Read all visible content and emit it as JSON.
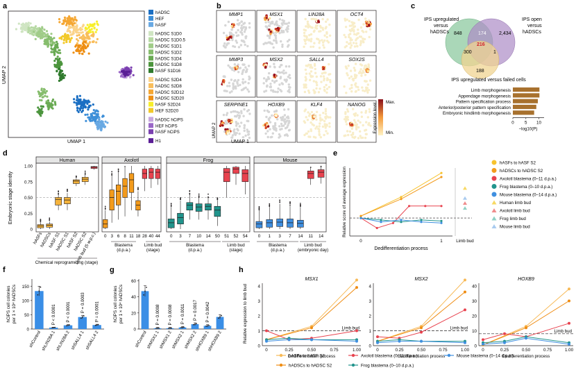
{
  "panel_letters": [
    "a",
    "b",
    "c",
    "d",
    "e",
    "f",
    "g",
    "h"
  ],
  "panel_a": {
    "xlabel": "UMAP 1",
    "ylabel": "UMAP 2",
    "legend": [
      {
        "label": "hADSC",
        "color": "#1b6fc3"
      },
      {
        "label": "HEF",
        "color": "#3d8fd8"
      },
      {
        "label": "hASF",
        "color": "#69a9e3"
      },
      {
        "label": "hADSC S1D0",
        "color": "#cfe5c2"
      },
      {
        "label": "hADSC S1D0.5",
        "color": "#b7d9a4"
      },
      {
        "label": "hADSC S1D1",
        "color": "#a0cc88"
      },
      {
        "label": "hADSC S1D2",
        "color": "#86bd6d"
      },
      {
        "label": "hADSC S1D4",
        "color": "#69aa53"
      },
      {
        "label": "hADSC S1D8",
        "color": "#4c953d"
      },
      {
        "label": "hASF S1D16",
        "color": "#2f7a2c"
      },
      {
        "label": "hADSC S2D4",
        "color": "#fbd38a"
      },
      {
        "label": "hADSC S2D8",
        "color": "#f9be5c"
      },
      {
        "label": "hADSC S2D12",
        "color": "#f5a733"
      },
      {
        "label": "hADSC S2D20",
        "color": "#ee8f14"
      },
      {
        "label": "hASF S2D24",
        "color": "#f7ef2a"
      },
      {
        "label": "HEF S2D20",
        "color": "#f2c928"
      },
      {
        "label": "hADSC hCiPS",
        "color": "#c7a7de"
      },
      {
        "label": "HEF hCiPS",
        "color": "#9a67c7"
      },
      {
        "label": "hASF hCiPS",
        "color": "#7a3fb0"
      },
      {
        "label": "H1",
        "color": "#5a1e95"
      }
    ]
  },
  "panel_b": {
    "genes": [
      "MMP1",
      "MSX1",
      "LIN28A",
      "OCT4",
      "MMP3",
      "MSX2",
      "SALL4",
      "SOX2S",
      "SERPINE1",
      "HOXB9",
      "KLF4",
      "NANOG"
    ],
    "xlabel": "UMAP 1",
    "ylabel": "UMAP 2",
    "colorbar_title": "Expression level",
    "colorbar_max": "Max.",
    "colorbar_min": "Min."
  },
  "panel_c": {
    "ylabel": "Embryonic stage identity",
    "yticks": [
      "0",
      "0.25",
      "0.50",
      "0.75",
      "1.00"
    ],
    "groups": [
      "Human",
      "Axolotl",
      "Frog",
      "Mouse"
    ],
    "human_ticks": [
      "hASFs",
      "hADSCs",
      "hASF S1",
      "hADSC S1",
      "hASF S2",
      "hADSC S2",
      "Limb bud (5 w.p.c.)"
    ],
    "human_caption": "Chemical reprogramming (stage)",
    "axolotl_ticks": [
      "0",
      "3",
      "6",
      "8",
      "11",
      "18",
      "28",
      "40",
      "44"
    ],
    "axolotl_caption_blastema": "Blastema (d.p.a.)",
    "axolotl_caption_limbbud": "Limb bud (stage)",
    "frog_ticks": [
      "0",
      "3",
      "7",
      "10",
      "14",
      "50",
      "51",
      "52",
      "54"
    ],
    "frog_caption_blastema": "Blastema (d.p.a.)",
    "frog_caption_limbbud": "Limb bud (stage)",
    "mouse_ticks": [
      "0",
      "1",
      "3",
      "7",
      "14",
      "11",
      "14"
    ],
    "mouse_caption_blastema": "Blastema (d.p.a.)",
    "mouse_caption_limbbud": "Limb bud (embryonic day)"
  },
  "panel_d": {
    "venn_labels": {
      "a": "IPS upregulated versus hADSCs",
      "b": "IPS open versus hADSCs",
      "c": "IPS upregulated versus failed cells"
    },
    "venn_counts": {
      "a_only": "848",
      "b_only": "2,434",
      "c_only": "188",
      "ab": "174",
      "ac": "300",
      "bc": "1",
      "abc": "216"
    },
    "go_terms": [
      {
        "term": "Limb morphogenesis",
        "value": 10.2
      },
      {
        "term": "Appendage morphogenesis",
        "value": 10.2
      },
      {
        "term": "Pattern specification process",
        "value": 9.6
      },
      {
        "term": "Anterior/posterior pattern specification",
        "value": 9.0
      },
      {
        "term": "Embryonic hindlimb morphogenesis",
        "value": 8.2
      }
    ],
    "xticks": [
      "0",
      "5",
      "10"
    ],
    "xlabel": "−log10(P)"
  },
  "panel_e": {
    "ylabel": "Relative score of average expression",
    "xlabel": "Dedifferentiation process",
    "xticks": [
      "0",
      "1"
    ],
    "limb_bud_label": "Limb bud",
    "legend": [
      {
        "label": "hASFs to hASF S2",
        "color": "#f7c32e",
        "shape": "circle"
      },
      {
        "label": "hADSCs to hADSC S2",
        "color": "#f39b1c",
        "shape": "circle"
      },
      {
        "label": "Axolotl blastema (0–11 d.p.a.)",
        "color": "#e8434f",
        "shape": "circle"
      },
      {
        "label": "Frog blastema (0–10 d.p.a.)",
        "color": "#21948c",
        "shape": "circle"
      },
      {
        "label": "Mouse blastema (0–14 d.p.a.)",
        "color": "#3f8fe0",
        "shape": "circle"
      },
      {
        "label": "Human limb bud",
        "color": "#f8d962",
        "shape": "triangle"
      },
      {
        "label": "Axolotl limb bud",
        "color": "#f08c8c",
        "shape": "triangle"
      },
      {
        "label": "Frog limb bud",
        "color": "#8fd0c4",
        "shape": "triangle"
      },
      {
        "label": "Mouse limb bud",
        "color": "#a9cbef",
        "shape": "triangle"
      }
    ]
  },
  "panel_f": {
    "ylabel": "hCiPS cell colonies per 1 × 10⁴ hADSCs",
    "yticks": [
      "0",
      "50",
      "100",
      "150"
    ],
    "ylim": [
      0,
      175
    ],
    "categories": [
      "shControl",
      "shLIN28A 1",
      "shLIN28A 2",
      "shSALL4 1",
      "shSALL4 2"
    ],
    "values": [
      133,
      5,
      13,
      42,
      14
    ],
    "pvalues": [
      "",
      "P < 0.0001",
      "P < 0.0001",
      "P = 0.0003",
      "P = 0.0001"
    ]
  },
  "panel_g": {
    "ylabel": "hCiPS cell colonies per 1 × 10⁴ hADSCs",
    "yticks": [
      "0",
      "20",
      "40",
      "60"
    ],
    "ylim": [
      0,
      62
    ],
    "categories": [
      "shControl",
      "shMSX1 1",
      "shMSX1 2",
      "shMSX2 1",
      "shMSX2 2",
      "shHOXB9 1",
      "shHOXB9 2"
    ],
    "values": [
      47,
      1,
      1,
      2,
      6,
      4,
      15
    ],
    "pvalues": [
      "",
      "P = 0.0008",
      "P = 0.0008",
      "P = 0.0011",
      "P = 0.0017",
      "P = 0.0042",
      ""
    ]
  },
  "panel_h": {
    "ylabel": "Relative expression to limb bud",
    "xlabel": "Dedifferentiation process",
    "xticks": [
      "0",
      "0.25",
      "0.50",
      "0.75",
      "1.00"
    ],
    "limb_bud_label": "Limb bud",
    "genes": [
      "MSX1",
      "MSX2",
      "HOXB9"
    ],
    "yticks": [
      [
        "0",
        "1",
        "2",
        "3",
        "4"
      ],
      [
        "0",
        "1",
        "2",
        "3",
        "4"
      ],
      [
        "0",
        "10",
        "20",
        "30",
        "40"
      ]
    ],
    "legend": [
      {
        "label": "hASFs to hASF S2",
        "color": "#f7b955"
      },
      {
        "label": "hADSCs to hADSC S2",
        "color": "#ef8c12"
      },
      {
        "label": "Axolotl blastema (0–11 d.p.a.)",
        "color": "#e8434f"
      },
      {
        "label": "Frog blastema (0–10 d.p.a.)",
        "color": "#21948c"
      },
      {
        "label": "Mouse blastema (0–14 d.p.a.)",
        "color": "#3f8fe0"
      }
    ]
  },
  "chart_data": [
    {
      "type": "bar",
      "id": "f",
      "categories": [
        "shControl",
        "shLIN28A 1",
        "shLIN28A 2",
        "shSALL4 1",
        "shSALL4 2"
      ],
      "values": [
        133,
        5,
        13,
        42,
        14
      ],
      "ylabel": "hCiPS cell colonies per 1 × 10⁴ hADSCs",
      "ylim": [
        0,
        175
      ]
    },
    {
      "type": "bar",
      "id": "g",
      "categories": [
        "shControl",
        "shMSX1 1",
        "shMSX1 2",
        "shMSX2 1",
        "shMSX2 2",
        "shHOXB9 1",
        "shHOXB9 2"
      ],
      "values": [
        47,
        1,
        1,
        2,
        6,
        4,
        15
      ],
      "ylabel": "hCiPS cell colonies per 1 × 10⁴ hADSCs",
      "ylim": [
        0,
        62
      ]
    },
    {
      "type": "bar",
      "id": "d-go",
      "categories": [
        "Limb morphogenesis",
        "Appendage morphogenesis",
        "Pattern specification process",
        "Anterior/posterior pattern specification",
        "Embryonic hindlimb morphogenesis"
      ],
      "values": [
        10.2,
        10.2,
        9.6,
        9.0,
        8.2
      ],
      "xlabel": "−log10(P)"
    },
    {
      "type": "line",
      "id": "e",
      "ylabel": "Relative score of average expression",
      "xlabel": "Dedifferentiation process",
      "series": [
        {
          "name": "hASFs to hASF S2",
          "x": [
            0,
            0.5,
            1
          ],
          "y": [
            0.02,
            0.21,
            0.45
          ]
        },
        {
          "name": "hADSCs to hADSC S2",
          "x": [
            0,
            0.5,
            1
          ],
          "y": [
            0.02,
            0.19,
            0.41
          ]
        },
        {
          "name": "Axolotl blastema (0–11 d.p.a.)",
          "x": [
            0,
            0.2,
            0.4,
            0.6,
            0.8,
            1
          ],
          "y": [
            0,
            -0.1,
            -0.05,
            0.12,
            0.12,
            0.12
          ]
        },
        {
          "name": "Frog blastema (0–10 d.p.a.)",
          "x": [
            0,
            0.25,
            0.5,
            0.75,
            1
          ],
          "y": [
            0,
            -0.02,
            -0.04,
            -0.02,
            -0.03
          ]
        },
        {
          "name": "Mouse blastema (0–14 d.p.a.)",
          "x": [
            0,
            0.25,
            0.5,
            0.75,
            1
          ],
          "y": [
            0,
            -0.04,
            -0.02,
            -0.04,
            -0.05
          ]
        }
      ]
    },
    {
      "type": "line",
      "id": "h-MSX1",
      "series": [
        {
          "name": "hASFs to hASF S2",
          "x": [
            0,
            0.5,
            1
          ],
          "y": [
            0.4,
            1.3,
            4.4
          ]
        },
        {
          "name": "hADSCs to hADSC S2",
          "x": [
            0,
            0.5,
            1
          ],
          "y": [
            0.4,
            1.2,
            3.9
          ]
        },
        {
          "name": "Axolotl blastema (0–11 d.p.a.)",
          "x": [
            0,
            0.25,
            0.5,
            1
          ],
          "y": [
            1.0,
            0.4,
            0.5,
            1.0
          ]
        },
        {
          "name": "Frog blastema (0–10 d.p.a.)",
          "x": [
            0,
            0.25,
            0.5,
            1
          ],
          "y": [
            0.4,
            0.5,
            0.4,
            0.4
          ]
        },
        {
          "name": "Mouse blastema (0–14 d.p.a.)",
          "x": [
            0,
            0.25,
            0.5,
            1
          ],
          "y": [
            0.3,
            0.4,
            0.4,
            0.3
          ]
        }
      ]
    },
    {
      "type": "line",
      "id": "h-MSX2",
      "series": [
        {
          "name": "hASFs to hASF S2",
          "x": [
            0,
            0.5,
            1
          ],
          "y": [
            0.3,
            1.3,
            4.4
          ]
        },
        {
          "name": "hADSCs to hADSC S2",
          "x": [
            0,
            0.5,
            1
          ],
          "y": [
            0.3,
            1.2,
            3.6
          ]
        },
        {
          "name": "Axolotl blastema (0–11 d.p.a.)",
          "x": [
            0,
            0.25,
            0.5,
            1
          ],
          "y": [
            0.6,
            0.5,
            0.9,
            2.4
          ]
        },
        {
          "name": "Frog blastema (0–10 d.p.a.)",
          "x": [
            0,
            0.25,
            0.5,
            1
          ],
          "y": [
            0.3,
            0.4,
            0.3,
            0.3
          ]
        },
        {
          "name": "Mouse blastema (0–14 d.p.a.)",
          "x": [
            0,
            0.25,
            0.5,
            1
          ],
          "y": [
            0.2,
            0.3,
            0.3,
            0.2
          ]
        }
      ]
    },
    {
      "type": "line",
      "id": "h-HOXB9",
      "series": [
        {
          "name": "hASFs to hASF S2",
          "x": [
            0,
            0.5,
            1
          ],
          "y": [
            0.5,
            13,
            38
          ]
        },
        {
          "name": "hADSCs to hADSC S2",
          "x": [
            0,
            0.5,
            1
          ],
          "y": [
            0.5,
            12,
            30
          ]
        },
        {
          "name": "Axolotl blastema (0–11 d.p.a.)",
          "x": [
            0,
            0.25,
            0.5,
            1
          ],
          "y": [
            4,
            8,
            6,
            15
          ]
        },
        {
          "name": "Frog blastema (0–10 d.p.a.)",
          "x": [
            0,
            0.25,
            0.5,
            1
          ],
          "y": [
            2,
            3,
            6,
            2
          ]
        },
        {
          "name": "Mouse blastema (0–14 d.p.a.)",
          "x": [
            0,
            0.25,
            0.5,
            1
          ],
          "y": [
            1,
            2,
            5,
            1
          ]
        }
      ]
    }
  ]
}
